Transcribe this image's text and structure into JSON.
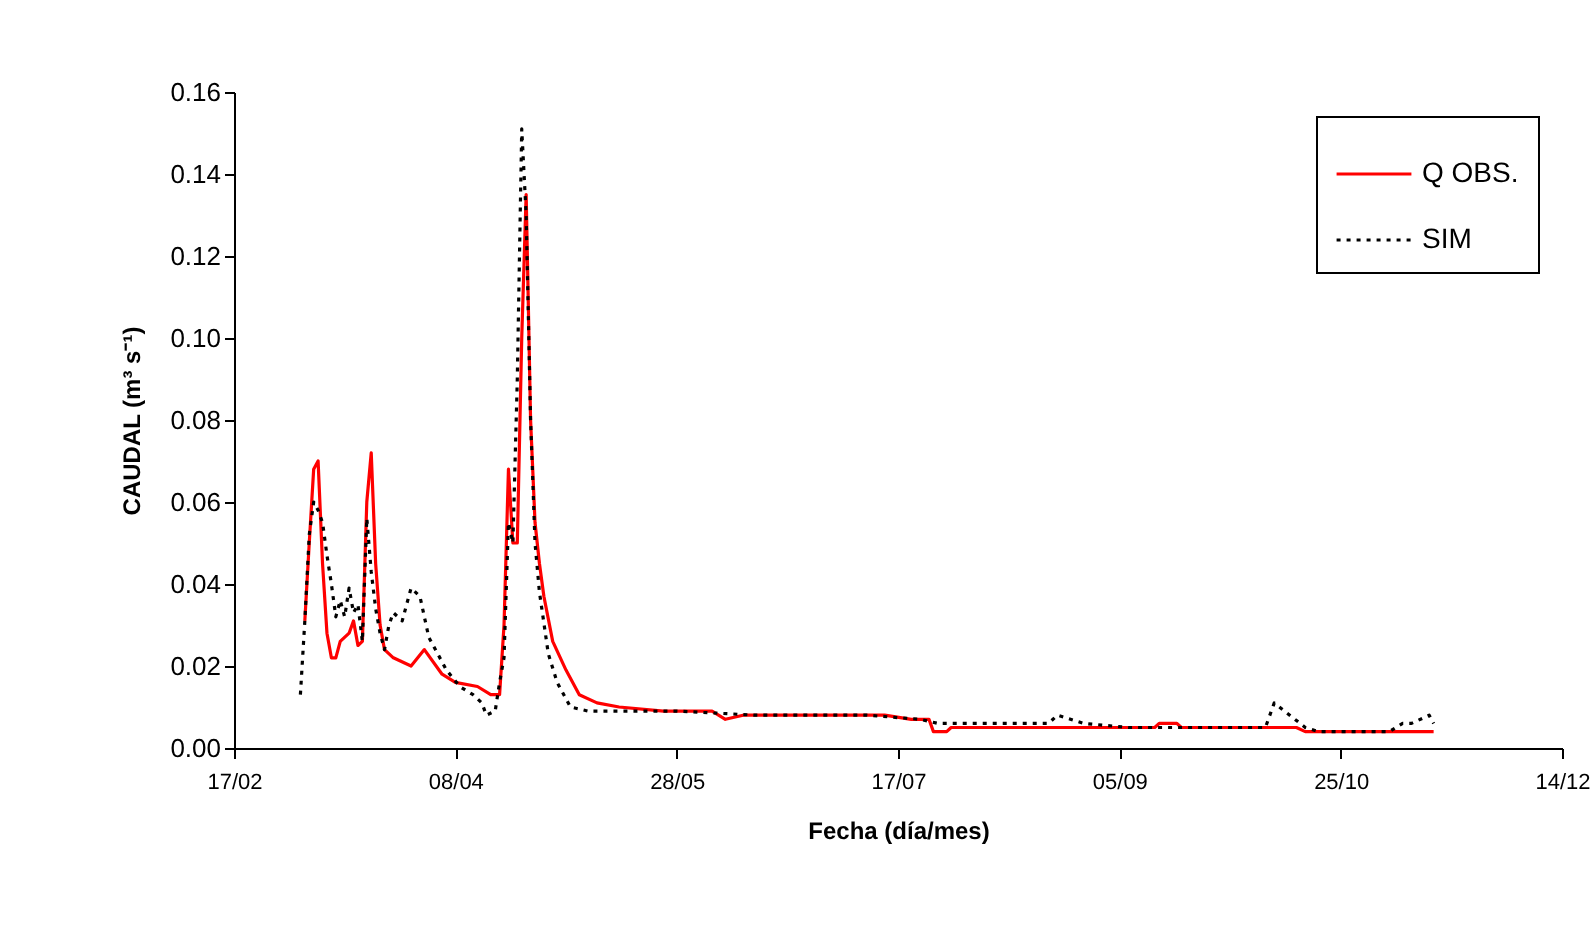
{
  "chart_data": {
    "type": "line",
    "xlabel": "Fecha (día/mes)",
    "ylabel": "CAUDAL (m³ s⁻¹)",
    "xlim": [
      "--02-17",
      "--12-14"
    ],
    "xticks": [
      {
        "value": "--02-17",
        "label": "17/02"
      },
      {
        "value": "--04-08",
        "label": "08/04"
      },
      {
        "value": "--05-28",
        "label": "28/05"
      },
      {
        "value": "--07-17",
        "label": "17/07"
      },
      {
        "value": "--09-05",
        "label": "05/09"
      },
      {
        "value": "--10-25",
        "label": "25/10"
      },
      {
        "value": "--12-14",
        "label": "14/12"
      }
    ],
    "ylim": [
      0,
      0.16
    ],
    "yticks": [
      {
        "value": 0,
        "label": "0.00"
      },
      {
        "value": 0.02,
        "label": "0.02"
      },
      {
        "value": 0.04,
        "label": "0.04"
      },
      {
        "value": 0.06,
        "label": "0.06"
      },
      {
        "value": 0.08,
        "label": "0.08"
      },
      {
        "value": 0.1,
        "label": "0.10"
      },
      {
        "value": 0.12,
        "label": "0.12"
      },
      {
        "value": 0.14,
        "label": "0.14"
      },
      {
        "value": 0.16,
        "label": "0.16"
      }
    ],
    "grid": false,
    "legend": "top right",
    "marker": "none",
    "series": [
      {
        "name": "Q OBS.",
        "color": "#ff0000",
        "line_style": "solid",
        "x": [
          "--03-05",
          "--03-06",
          "--03-07",
          "--03-08",
          "--03-09",
          "--03-10",
          "--03-11",
          "--03-12",
          "--03-13",
          "--03-15",
          "--03-16",
          "--03-17",
          "--03-18",
          "--03-19",
          "--03-20",
          "--03-21",
          "--03-22",
          "--03-23",
          "--03-25",
          "--03-29",
          "--04-01",
          "--04-05",
          "--04-08",
          "--04-13",
          "--04-16",
          "--04-18",
          "--04-19",
          "--04-20",
          "--04-21",
          "--04-22",
          "--04-23",
          "--04-24",
          "--04-25",
          "--04-26",
          "--04-27",
          "--04-28",
          "--04-30",
          "--05-03",
          "--05-06",
          "--05-10",
          "--05-15",
          "--05-25",
          "--06-05",
          "--06-08",
          "--06-12",
          "--07-14",
          "--07-20",
          "--07-24",
          "--07-25",
          "--07-28",
          "--07-29",
          "--08-26",
          "--09-13",
          "--09-14",
          "--09-18",
          "--09-19",
          "--10-15",
          "--10-17",
          "--11-15"
        ],
        "values": [
          0.031,
          0.05,
          0.068,
          0.07,
          0.045,
          0.028,
          0.022,
          0.022,
          0.026,
          0.028,
          0.031,
          0.025,
          0.026,
          0.06,
          0.072,
          0.045,
          0.03,
          0.024,
          0.022,
          0.02,
          0.024,
          0.018,
          0.016,
          0.015,
          0.013,
          0.013,
          0.03,
          0.068,
          0.05,
          0.05,
          0.1,
          0.135,
          0.08,
          0.055,
          0.045,
          0.037,
          0.026,
          0.019,
          0.013,
          0.011,
          0.01,
          0.009,
          0.009,
          0.007,
          0.008,
          0.008,
          0.007,
          0.007,
          0.004,
          0.004,
          0.005,
          0.005,
          0.005,
          0.006,
          0.006,
          0.005,
          0.005,
          0.004,
          0.004
        ]
      },
      {
        "name": "SIM",
        "color": "#000000",
        "line_style": "dotted",
        "x": [
          "--03-04",
          "--03-05",
          "--03-06",
          "--03-07",
          "--03-08",
          "--03-09",
          "--03-10",
          "--03-11",
          "--03-12",
          "--03-13",
          "--03-14",
          "--03-15",
          "--03-16",
          "--03-17",
          "--03-18",
          "--03-19",
          "--03-20",
          "--03-21",
          "--03-22",
          "--03-23",
          "--03-24",
          "--03-25",
          "--03-27",
          "--03-29",
          "--03-31",
          "--04-02",
          "--04-04",
          "--04-06",
          "--04-09",
          "--04-12",
          "--04-14",
          "--04-15",
          "--04-17",
          "--04-18",
          "--04-19",
          "--04-20",
          "--04-21",
          "--04-22",
          "--04-23",
          "--04-24",
          "--04-25",
          "--04-26",
          "--04-27",
          "--04-29",
          "--05-01",
          "--05-04",
          "--05-08",
          "--05-28",
          "--06-15",
          "--07-10",
          "--07-22",
          "--07-26",
          "--08-20",
          "--08-22",
          "--08-28",
          "--09-07",
          "--10-08",
          "--10-10",
          "--10-17",
          "--10-20",
          "--11-05",
          "--11-08",
          "--11-10",
          "--11-14",
          "--11-15"
        ],
        "values": [
          0.013,
          0.031,
          0.052,
          0.06,
          0.058,
          0.055,
          0.047,
          0.04,
          0.032,
          0.036,
          0.032,
          0.039,
          0.033,
          0.035,
          0.026,
          0.056,
          0.043,
          0.034,
          0.028,
          0.024,
          0.03,
          0.033,
          0.031,
          0.039,
          0.037,
          0.027,
          0.023,
          0.019,
          0.015,
          0.013,
          0.011,
          0.008,
          0.009,
          0.016,
          0.022,
          0.055,
          0.05,
          0.09,
          0.151,
          0.13,
          0.08,
          0.05,
          0.038,
          0.023,
          0.016,
          0.01,
          0.009,
          0.009,
          0.008,
          0.008,
          0.007,
          0.006,
          0.006,
          0.008,
          0.006,
          0.005,
          0.005,
          0.011,
          0.005,
          0.004,
          0.004,
          0.006,
          0.006,
          0.008,
          0.006
        ]
      }
    ]
  }
}
